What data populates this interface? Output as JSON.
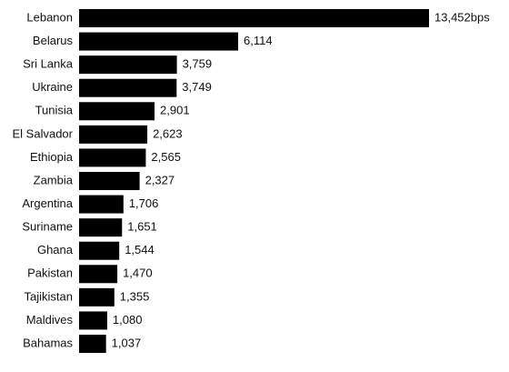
{
  "chart_data": {
    "type": "bar",
    "orientation": "horizontal",
    "color": "#000000",
    "categories": [
      "Lebanon",
      "Belarus",
      "Sri Lanka",
      "Ukraine",
      "Tunisia",
      "El Salvador",
      "Ethiopia",
      "Zambia",
      "Argentina",
      "Suriname",
      "Ghana",
      "Pakistan",
      "Tajikistan",
      "Maldives",
      "Bahamas"
    ],
    "values": [
      13452,
      6114,
      3759,
      3749,
      2901,
      2623,
      2565,
      2327,
      1706,
      1651,
      1544,
      1470,
      1355,
      1080,
      1037
    ],
    "value_labels": [
      "13,452bps",
      "6,114",
      "3,759",
      "3,749",
      "2,901",
      "2,623",
      "2,565",
      "2,327",
      "1,706",
      "1,651",
      "1,544",
      "1,470",
      "1,355",
      "1,080",
      "1,037"
    ]
  }
}
